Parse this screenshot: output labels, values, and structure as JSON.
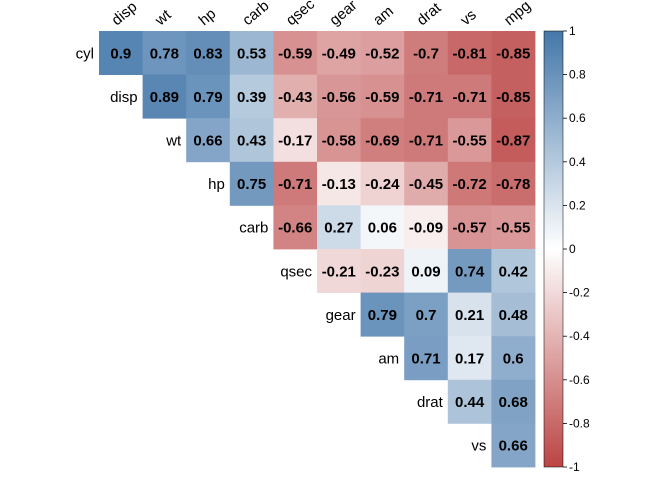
{
  "chart_data": {
    "type": "heatmap",
    "subtype": "correlation-upper-triangle",
    "rows": [
      "cyl",
      "disp",
      "wt",
      "hp",
      "carb",
      "qsec",
      "gear",
      "am",
      "drat",
      "vs"
    ],
    "columns": [
      "disp",
      "wt",
      "hp",
      "carb",
      "qsec",
      "gear",
      "am",
      "drat",
      "vs",
      "mpg"
    ],
    "values": [
      [
        0.9,
        0.78,
        0.83,
        0.53,
        -0.59,
        -0.49,
        -0.52,
        -0.7,
        -0.81,
        -0.85
      ],
      [
        null,
        0.89,
        0.79,
        0.39,
        -0.43,
        -0.56,
        -0.59,
        -0.71,
        -0.71,
        -0.85
      ],
      [
        null,
        null,
        0.66,
        0.43,
        -0.17,
        -0.58,
        -0.69,
        -0.71,
        -0.55,
        -0.87
      ],
      [
        null,
        null,
        null,
        0.75,
        -0.71,
        -0.13,
        -0.24,
        -0.45,
        -0.72,
        -0.78
      ],
      [
        null,
        null,
        null,
        null,
        -0.66,
        0.27,
        0.06,
        -0.09,
        -0.57,
        -0.55
      ],
      [
        null,
        null,
        null,
        null,
        null,
        -0.21,
        -0.23,
        0.09,
        0.74,
        0.42
      ],
      [
        null,
        null,
        null,
        null,
        null,
        null,
        0.79,
        0.7,
        0.21,
        0.48
      ],
      [
        null,
        null,
        null,
        null,
        null,
        null,
        null,
        0.71,
        0.17,
        0.6
      ],
      [
        null,
        null,
        null,
        null,
        null,
        null,
        null,
        null,
        0.44,
        0.68
      ],
      [
        null,
        null,
        null,
        null,
        null,
        null,
        null,
        null,
        null,
        0.66
      ]
    ],
    "value_labels": [
      [
        "0.9",
        "0.78",
        "0.83",
        "0.53",
        "-0.59",
        "-0.49",
        "-0.52",
        "-0.7",
        "-0.81",
        "-0.85"
      ],
      [
        null,
        "0.89",
        "0.79",
        "0.39",
        "-0.43",
        "-0.56",
        "-0.59",
        "-0.71",
        "-0.71",
        "-0.85"
      ],
      [
        null,
        null,
        "0.66",
        "0.43",
        "-0.17",
        "-0.58",
        "-0.69",
        "-0.71",
        "-0.55",
        "-0.87"
      ],
      [
        null,
        null,
        null,
        "0.75",
        "-0.71",
        "-0.13",
        "-0.24",
        "-0.45",
        "-0.72",
        "-0.78"
      ],
      [
        null,
        null,
        null,
        null,
        "-0.66",
        "0.27",
        "0.06",
        "-0.09",
        "-0.57",
        "-0.55"
      ],
      [
        null,
        null,
        null,
        null,
        null,
        "-0.21",
        "-0.23",
        "0.09",
        "0.74",
        "0.42"
      ],
      [
        null,
        null,
        null,
        null,
        null,
        null,
        "0.79",
        "0.7",
        "0.21",
        "0.48"
      ],
      [
        null,
        null,
        null,
        null,
        null,
        null,
        null,
        "0.71",
        "0.17",
        "0.6"
      ],
      [
        null,
        null,
        null,
        null,
        null,
        null,
        null,
        null,
        "0.44",
        "0.68"
      ],
      [
        null,
        null,
        null,
        null,
        null,
        null,
        null,
        null,
        null,
        "0.66"
      ]
    ],
    "color_scale": {
      "range": [
        -1,
        1
      ],
      "low_color": "#BB4444",
      "mid_color": "#FFFFFF",
      "high_color": "#4477AA",
      "ticks": [
        1,
        0.8,
        0.6,
        0.4,
        0.2,
        0,
        -0.2,
        -0.4,
        -0.6,
        -0.8,
        -1
      ],
      "tick_labels": [
        "1",
        "0.8",
        "0.6",
        "0.4",
        "0.2",
        "0",
        "-0.2",
        "-0.4",
        "-0.6",
        "-0.8",
        "-1"
      ]
    },
    "legend_placement": "right",
    "grid": false
  }
}
